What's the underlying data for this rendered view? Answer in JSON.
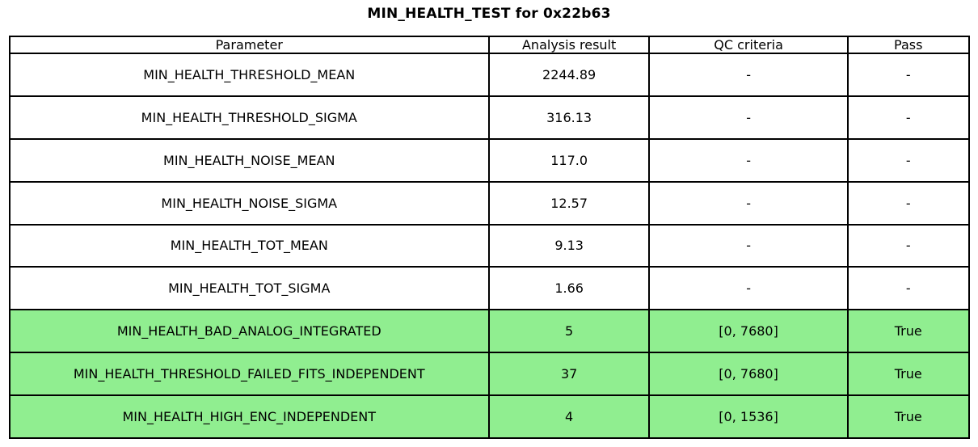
{
  "chart_data": {
    "type": "table",
    "title": "MIN_HEALTH_TEST for 0x22b63",
    "columns": [
      "Parameter",
      "Analysis result",
      "QC criteria",
      "Pass"
    ],
    "rows": [
      {
        "cells": [
          "MIN_HEALTH_THRESHOLD_MEAN",
          "2244.89",
          "-",
          "-"
        ],
        "highlight": false
      },
      {
        "cells": [
          "MIN_HEALTH_THRESHOLD_SIGMA",
          "316.13",
          "-",
          "-"
        ],
        "highlight": false
      },
      {
        "cells": [
          "MIN_HEALTH_NOISE_MEAN",
          "117.0",
          "-",
          "-"
        ],
        "highlight": false
      },
      {
        "cells": [
          "MIN_HEALTH_NOISE_SIGMA",
          "12.57",
          "-",
          "-"
        ],
        "highlight": false
      },
      {
        "cells": [
          "MIN_HEALTH_TOT_MEAN",
          "9.13",
          "-",
          "-"
        ],
        "highlight": false
      },
      {
        "cells": [
          "MIN_HEALTH_TOT_SIGMA",
          "1.66",
          "-",
          "-"
        ],
        "highlight": false
      },
      {
        "cells": [
          "MIN_HEALTH_BAD_ANALOG_INTEGRATED",
          "5",
          "[0, 7680]",
          "True"
        ],
        "highlight": true
      },
      {
        "cells": [
          "MIN_HEALTH_THRESHOLD_FAILED_FITS_INDEPENDENT",
          "37",
          "[0, 7680]",
          "True"
        ],
        "highlight": true
      },
      {
        "cells": [
          "MIN_HEALTH_HIGH_ENC_INDEPENDENT",
          "4",
          "[0, 1536]",
          "True"
        ],
        "highlight": true
      }
    ],
    "highlight_color": "#90ee90",
    "row_color": "#ffffff",
    "border_color": "#000000",
    "text_color": "#000000"
  }
}
